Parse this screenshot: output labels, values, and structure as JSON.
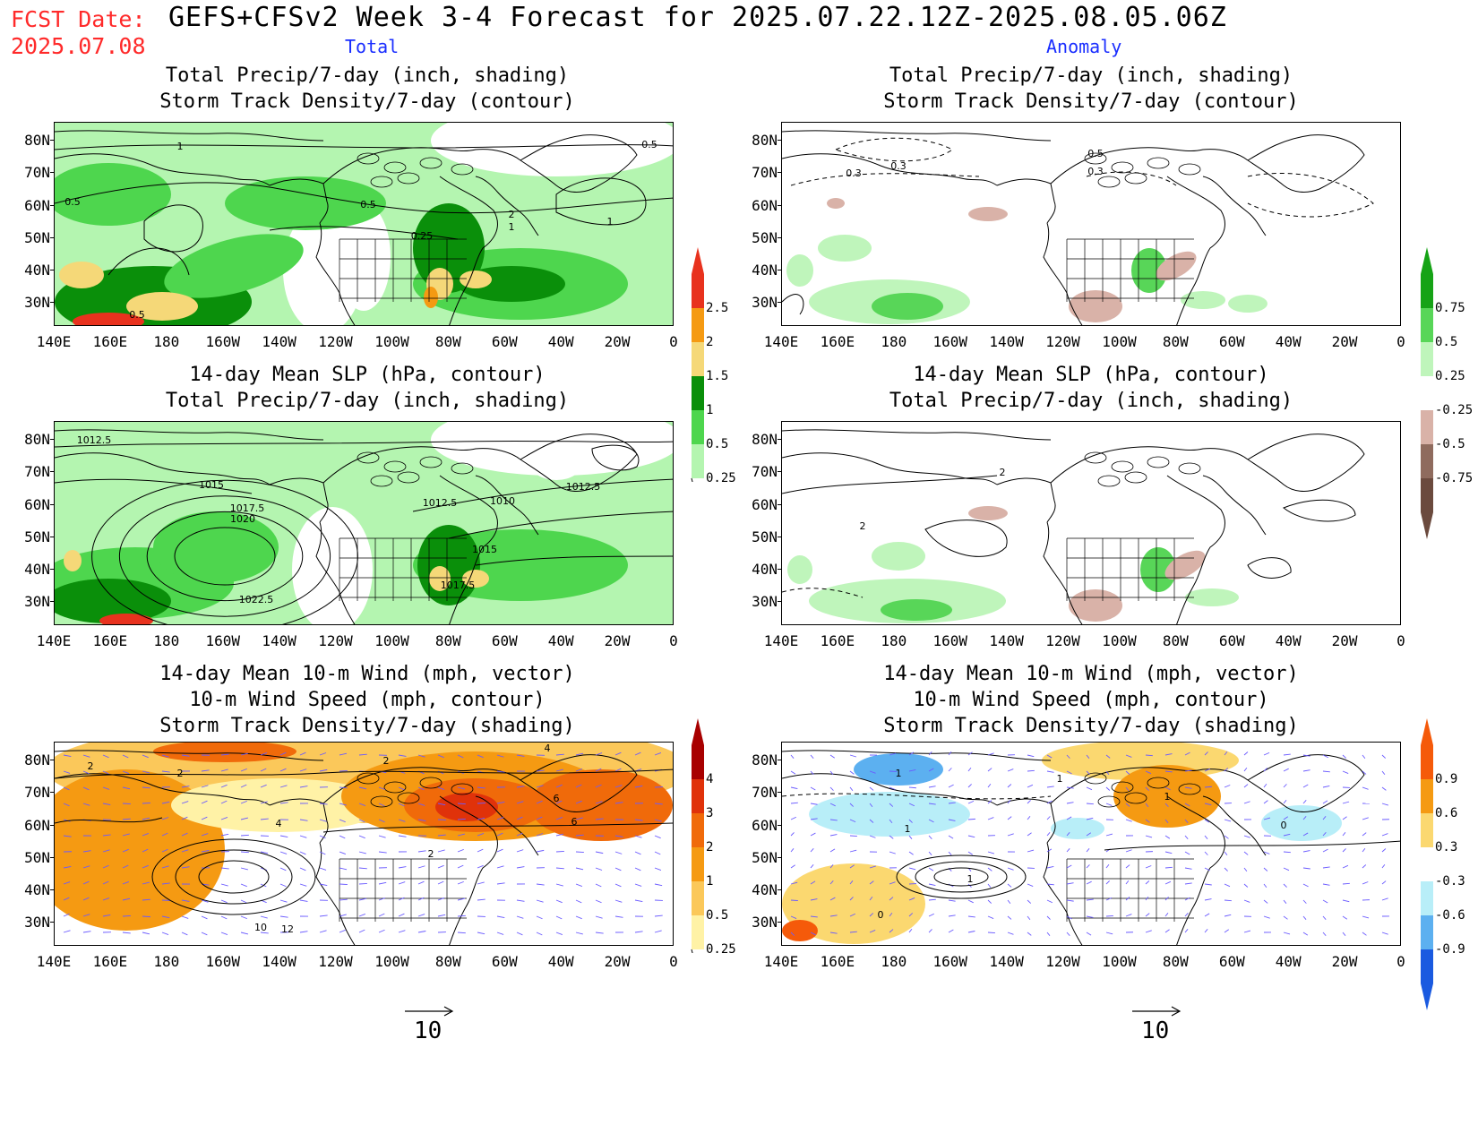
{
  "header": {
    "fcst_label": "FCST Date:",
    "fcst_date": "2025.07.08",
    "title": "GEFS+CFSv2 Week 3-4 Forecast for 2025.07.22.12Z-2025.08.05.06Z",
    "col_total": "Total",
    "col_anomaly": "Anomaly"
  },
  "axes": {
    "lat_labels": [
      "80N",
      "70N",
      "60N",
      "50N",
      "40N",
      "30N"
    ],
    "lon_labels": [
      "140E",
      "160E",
      "180",
      "160W",
      "140W",
      "120W",
      "100W",
      "80W",
      "60W",
      "40W",
      "20W",
      "0"
    ]
  },
  "panels": [
    {
      "id": "p1",
      "title_lines": [
        "Total Precip/7-day (inch, shading)",
        "Storm Track Density/7-day (contour)"
      ],
      "contour_labels": [
        "1",
        "0.5",
        "0.5",
        "0.5",
        "0.25",
        "2",
        "1",
        "1",
        "0.5"
      ]
    },
    {
      "id": "p2",
      "title_lines": [
        "Total Precip/7-day (inch, shading)",
        "Storm Track Density/7-day (contour)"
      ],
      "contour_labels": [
        "0.3",
        "0.3",
        "0.5",
        "0.3"
      ]
    },
    {
      "id": "p3",
      "title_lines": [
        "14-day Mean SLP (hPa, contour)",
        "Total Precip/7-day (inch, shading)"
      ],
      "contour_labels": [
        "1012.5",
        "1015",
        "1017.5",
        "1020",
        "1012.5",
        "1010",
        "1012.5",
        "1015",
        "1017.5",
        "1022.5"
      ]
    },
    {
      "id": "p4",
      "title_lines": [
        "14-day Mean SLP (hPa, contour)",
        "Total Precip/7-day (inch, shading)"
      ],
      "contour_labels": [
        "2",
        "2"
      ]
    },
    {
      "id": "p5",
      "title_lines": [
        "14-day Mean 10-m Wind (mph, vector)",
        "10-m Wind Speed (mph, contour)",
        "Storm Track Density/7-day (shading)"
      ],
      "contour_labels": [
        "2",
        "2",
        "2",
        "4",
        "2",
        "6",
        "6",
        "4",
        "10",
        "12"
      ]
    },
    {
      "id": "p6",
      "title_lines": [
        "14-day Mean 10-m Wind (mph, vector)",
        "10-m Wind Speed (mph, contour)",
        "Storm Track Density/7-day (shading)"
      ],
      "contour_labels": [
        "1",
        "1",
        "1",
        "1",
        "0",
        "0",
        "1"
      ]
    }
  ],
  "colorbars": {
    "precip_total": {
      "labels": [
        "2.5",
        "2",
        "1.5",
        "1",
        "0.5",
        "0.25"
      ],
      "colors": [
        "#e8321e",
        "#f59a12",
        "#f5d878",
        "#0a8f0a",
        "#4ed64e",
        "#b4f5b0"
      ]
    },
    "precip_anom": {
      "labels": [
        "0.75",
        "0.5",
        "0.25",
        "-0.25",
        "-0.5",
        "-0.75"
      ],
      "colors": [
        "#16a316",
        "#58d658",
        "#bff5bb",
        "#ffffff",
        "#d9b2a8",
        "#8f6b5e",
        "#6b4a3e"
      ]
    },
    "storm_total": {
      "labels": [
        "4",
        "3",
        "2",
        "1",
        "0.5",
        "0.25"
      ],
      "colors": [
        "#a80000",
        "#e0320a",
        "#f06a0a",
        "#f59a12",
        "#fbc85a",
        "#fff2a6"
      ]
    },
    "storm_anom": {
      "labels": [
        "0.9",
        "0.6",
        "0.3",
        "-0.3",
        "-0.6",
        "-0.9"
      ],
      "colors": [
        "#f55a0a",
        "#f59a12",
        "#fbd870",
        "#ffffff",
        "#b8eef8",
        "#5cb0f0",
        "#1a5ae0"
      ]
    }
  },
  "vector_ref": {
    "label": "10"
  }
}
